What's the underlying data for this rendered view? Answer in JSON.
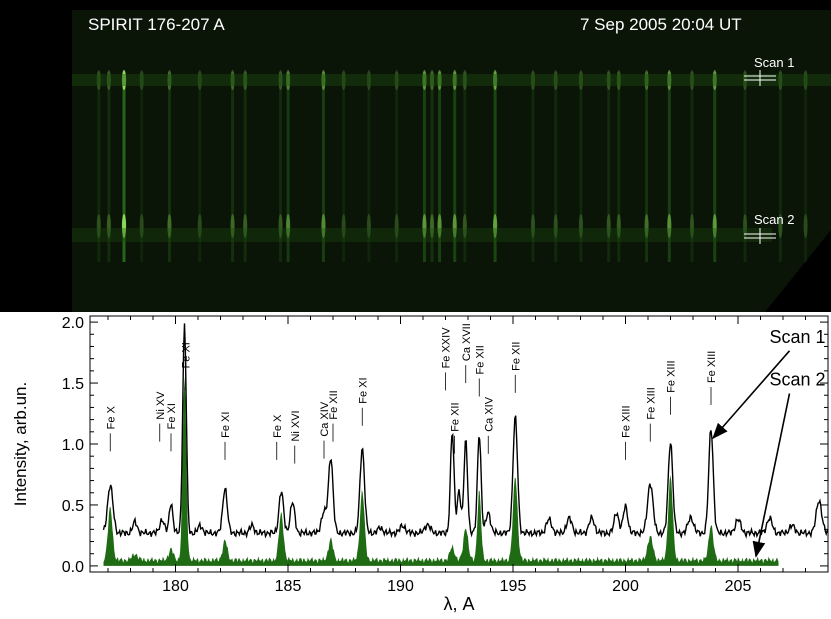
{
  "image_panel": {
    "title": "SPIRIT  176-207 A",
    "timestamp": "7 Sep 2005  20:04 UT",
    "scan1_label": "Scan 1",
    "scan2_label": "Scan 2",
    "line_color": "#2f8f1f",
    "background_color": "#000000"
  },
  "chart_data": {
    "type": "line",
    "xlabel": "λ, A",
    "ylabel": "Intensity, arb.un.",
    "xlim": [
      176.2,
      209.0
    ],
    "ylim": [
      -0.05,
      2.05
    ],
    "xticks": [
      180,
      185,
      190,
      195,
      200,
      205
    ],
    "yticks": [
      0.0,
      0.5,
      1.0,
      1.5,
      2.0
    ],
    "ytick_labels": [
      "0.0",
      "0.5",
      "1.0",
      "1.5",
      "2.0"
    ],
    "series": [
      {
        "name": "Scan 1",
        "color": "#000000",
        "style": "line",
        "baseline": 0.27,
        "peaks": [
          [
            177.1,
            0.66,
            0.12
          ],
          [
            178.2,
            0.36,
            0.1
          ],
          [
            179.4,
            0.38,
            0.1
          ],
          [
            179.8,
            0.52,
            0.08
          ],
          [
            180.4,
            1.97,
            0.08
          ],
          [
            181.1,
            0.33,
            0.1
          ],
          [
            182.2,
            0.64,
            0.1
          ],
          [
            183.4,
            0.33,
            0.1
          ],
          [
            184.7,
            0.61,
            0.1
          ],
          [
            185.2,
            0.52,
            0.1
          ],
          [
            186.6,
            0.44,
            0.12
          ],
          [
            186.9,
            0.89,
            0.1
          ],
          [
            188.3,
            0.97,
            0.1
          ],
          [
            189.1,
            0.31,
            0.12
          ],
          [
            190.1,
            0.33,
            0.12
          ],
          [
            191.2,
            0.34,
            0.12
          ],
          [
            192.3,
            1.1,
            0.08
          ],
          [
            192.6,
            0.62,
            0.08
          ],
          [
            192.9,
            1.03,
            0.08
          ],
          [
            193.5,
            1.09,
            0.08
          ],
          [
            193.9,
            0.44,
            0.1
          ],
          [
            195.1,
            1.22,
            0.1
          ],
          [
            196.6,
            0.38,
            0.12
          ],
          [
            197.5,
            0.39,
            0.12
          ],
          [
            198.5,
            0.39,
            0.12
          ],
          [
            199.6,
            0.44,
            0.1
          ],
          [
            200.0,
            0.49,
            0.1
          ],
          [
            201.1,
            0.68,
            0.12
          ],
          [
            202.0,
            1.02,
            0.1
          ],
          [
            202.9,
            0.4,
            0.12
          ],
          [
            203.8,
            1.13,
            0.1
          ],
          [
            205.0,
            0.38,
            0.12
          ],
          [
            206.4,
            0.39,
            0.12
          ],
          [
            207.4,
            0.33,
            0.12
          ],
          [
            208.6,
            0.54,
            0.12
          ]
        ]
      },
      {
        "name": "Scan 2",
        "color": "#1f6b14",
        "style": "filled",
        "baseline": 0.05,
        "x_end": 206.8,
        "peaks": [
          [
            177.1,
            0.48,
            0.1
          ],
          [
            178.2,
            0.1,
            0.12
          ],
          [
            179.8,
            0.14,
            0.1
          ],
          [
            180.4,
            1.55,
            0.08
          ],
          [
            182.2,
            0.21,
            0.1
          ],
          [
            184.7,
            0.43,
            0.1
          ],
          [
            186.9,
            0.22,
            0.1
          ],
          [
            188.3,
            0.62,
            0.1
          ],
          [
            192.3,
            0.16,
            0.1
          ],
          [
            192.9,
            0.32,
            0.1
          ],
          [
            193.5,
            0.62,
            0.08
          ],
          [
            195.1,
            0.74,
            0.1
          ],
          [
            201.1,
            0.24,
            0.12
          ],
          [
            202.0,
            0.74,
            0.1
          ],
          [
            203.8,
            0.34,
            0.1
          ]
        ]
      }
    ],
    "line_labels": [
      {
        "text": "Fe X",
        "x": 177.1,
        "y": 1.12
      },
      {
        "text": "Ni XV",
        "x": 179.3,
        "y": 1.2
      },
      {
        "text": "Fe XI",
        "x": 179.8,
        "y": 1.12
      },
      {
        "text": "Fe XI",
        "x": 180.45,
        "y": 1.62
      },
      {
        "text": "Fe XI",
        "x": 182.2,
        "y": 1.05
      },
      {
        "text": "Fe X",
        "x": 184.5,
        "y": 1.05
      },
      {
        "text": "Ni XVI",
        "x": 185.3,
        "y": 1.02
      },
      {
        "text": "Ca XIV",
        "x": 186.6,
        "y": 1.06
      },
      {
        "text": "Fe XII",
        "x": 187.0,
        "y": 1.2
      },
      {
        "text": "Fe XI",
        "x": 188.3,
        "y": 1.33
      },
      {
        "text": "Fe XXIV",
        "x": 192.0,
        "y": 1.62
      },
      {
        "text": "Fe XII",
        "x": 192.4,
        "y": 1.1
      },
      {
        "text": "Ca XVII",
        "x": 192.9,
        "y": 1.68
      },
      {
        "text": "Fe XII",
        "x": 193.5,
        "y": 1.57
      },
      {
        "text": "Ca XIV",
        "x": 193.9,
        "y": 1.1
      },
      {
        "text": "Fe XII",
        "x": 195.1,
        "y": 1.6
      },
      {
        "text": "Fe XIII",
        "x": 200.0,
        "y": 1.05
      },
      {
        "text": "Fe XIII",
        "x": 201.1,
        "y": 1.2
      },
      {
        "text": "Fe XIII",
        "x": 202.0,
        "y": 1.42
      },
      {
        "text": "Fe XIII",
        "x": 203.8,
        "y": 1.5
      }
    ],
    "annotations": [
      {
        "text": "Scan 1",
        "x": 206.4,
        "y": 1.83,
        "arrow_to": [
          203.9,
          1.05
        ]
      },
      {
        "text": "Scan 2",
        "x": 206.4,
        "y": 1.48,
        "arrow_to": [
          205.8,
          0.08
        ]
      }
    ],
    "grid": false
  }
}
